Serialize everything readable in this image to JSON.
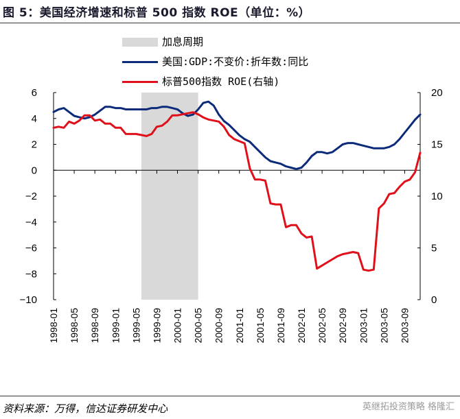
{
  "title": "图 5：美国经济增速和标普 500 指数 ROE（单位：%）",
  "source": "资料来源：万得，信达证券研发中心",
  "watermark": "英继拓投资策略 格隆汇",
  "chart_data": {
    "type": "line",
    "legend": {
      "shade": "加息周期",
      "gdp": "美国:GDP:不变价:折年数:同比",
      "roe": "标普500指数 ROE(右轴)"
    },
    "left_axis": {
      "ylim": [
        -10,
        6
      ],
      "ticks": [
        6,
        4,
        2,
        0,
        -2,
        -4,
        -6,
        -8,
        -10
      ]
    },
    "right_axis": {
      "ylim": [
        0,
        20
      ],
      "ticks": [
        20,
        15,
        10,
        5,
        0
      ]
    },
    "x_labels": [
      "1998-01",
      "1998-05",
      "1998-09",
      "1999-01",
      "1999-05",
      "1999-09",
      "2000-01",
      "2000-05",
      "2000-09",
      "2001-01",
      "2001-05",
      "2001-09",
      "2002-01",
      "2002-05",
      "2002-09",
      "2003-01",
      "2003-05",
      "2003-09"
    ],
    "shade_range": [
      "1999-06",
      "2000-05"
    ],
    "colors": {
      "gdp": "#0b2a7a",
      "roe": "#e0101a",
      "shade": "#d9d9d9"
    },
    "series": [
      {
        "name": "美国:GDP:不变价:折年数:同比",
        "axis": "left",
        "x": [
          "1998-01",
          "1998-02",
          "1998-03",
          "1998-04",
          "1998-05",
          "1998-06",
          "1998-07",
          "1998-08",
          "1998-09",
          "1998-10",
          "1998-11",
          "1998-12",
          "1999-01",
          "1999-02",
          "1999-03",
          "1999-04",
          "1999-05",
          "1999-06",
          "1999-07",
          "1999-08",
          "1999-09",
          "1999-10",
          "1999-11",
          "1999-12",
          "2000-01",
          "2000-02",
          "2000-03",
          "2000-04",
          "2000-05",
          "2000-06",
          "2000-07",
          "2000-08",
          "2000-09",
          "2000-10",
          "2000-11",
          "2000-12",
          "2001-01",
          "2001-02",
          "2001-03",
          "2001-04",
          "2001-05",
          "2001-06",
          "2001-07",
          "2001-08",
          "2001-09",
          "2001-10",
          "2001-11",
          "2001-12",
          "2002-01",
          "2002-02",
          "2002-03",
          "2002-04",
          "2002-05",
          "2002-06",
          "2002-07",
          "2002-08",
          "2002-09",
          "2002-10",
          "2002-11",
          "2002-12",
          "2003-01",
          "2003-02",
          "2003-03",
          "2003-04",
          "2003-05",
          "2003-06",
          "2003-07",
          "2003-08",
          "2003-09",
          "2003-10",
          "2003-11",
          "2003-12"
        ],
        "values": [
          4.5,
          4.7,
          4.8,
          4.5,
          4.2,
          4.1,
          4.0,
          4.1,
          4.3,
          4.6,
          4.9,
          4.9,
          4.8,
          4.8,
          4.7,
          4.7,
          4.7,
          4.7,
          4.7,
          4.8,
          4.8,
          4.9,
          4.9,
          4.8,
          4.7,
          4.4,
          4.2,
          4.3,
          4.7,
          5.2,
          5.3,
          5.0,
          4.3,
          3.8,
          3.5,
          3.1,
          2.7,
          2.4,
          2.2,
          1.8,
          1.4,
          1.0,
          0.7,
          0.6,
          0.5,
          0.3,
          0.2,
          0.1,
          0.2,
          0.6,
          1.1,
          1.4,
          1.4,
          1.3,
          1.4,
          1.7,
          2.0,
          2.1,
          2.1,
          2.0,
          1.9,
          1.8,
          1.7,
          1.7,
          1.7,
          1.8,
          2.0,
          2.4,
          2.9,
          3.4,
          3.9,
          4.3
        ]
      },
      {
        "name": "标普500指数 ROE(右轴)",
        "axis": "right",
        "x": [
          "1998-01",
          "1998-02",
          "1998-03",
          "1998-04",
          "1998-05",
          "1998-06",
          "1998-07",
          "1998-08",
          "1998-09",
          "1998-10",
          "1998-11",
          "1998-12",
          "1999-01",
          "1999-02",
          "1999-03",
          "1999-04",
          "1999-05",
          "1999-06",
          "1999-07",
          "1999-08",
          "1999-09",
          "1999-10",
          "1999-11",
          "1999-12",
          "2000-01",
          "2000-02",
          "2000-03",
          "2000-04",
          "2000-05",
          "2000-06",
          "2000-07",
          "2000-08",
          "2000-09",
          "2000-10",
          "2000-11",
          "2000-12",
          "2001-01",
          "2001-02",
          "2001-03",
          "2001-04",
          "2001-05",
          "2001-06",
          "2001-07",
          "2001-08",
          "2001-09",
          "2001-10",
          "2001-11",
          "2001-12",
          "2002-01",
          "2002-02",
          "2002-03",
          "2002-04",
          "2002-05",
          "2002-06",
          "2002-07",
          "2002-08",
          "2002-09",
          "2002-10",
          "2002-11",
          "2002-12",
          "2003-01",
          "2003-02",
          "2003-03",
          "2003-04",
          "2003-05",
          "2003-06",
          "2003-07",
          "2003-08",
          "2003-09",
          "2003-10",
          "2003-11",
          "2003-12"
        ],
        "values": [
          16.6,
          16.7,
          16.6,
          17.2,
          17.0,
          17.3,
          17.8,
          17.8,
          17.3,
          17.4,
          17.0,
          17.0,
          16.6,
          16.6,
          16.0,
          16.0,
          16.0,
          15.9,
          15.8,
          16.0,
          16.7,
          16.8,
          17.2,
          17.8,
          17.8,
          17.9,
          18.0,
          18.1,
          17.9,
          17.6,
          17.4,
          17.3,
          17.2,
          16.7,
          15.9,
          15.5,
          15.3,
          15.1,
          12.7,
          11.6,
          11.6,
          11.5,
          9.3,
          9.2,
          9.2,
          7.0,
          7.2,
          7.2,
          6.4,
          6.0,
          6.1,
          3.0,
          3.3,
          3.6,
          3.9,
          4.2,
          4.4,
          4.5,
          4.6,
          4.5,
          2.9,
          2.8,
          2.9,
          8.8,
          9.3,
          10.2,
          10.3,
          10.9,
          11.4,
          11.6,
          12.3,
          14.2
        ]
      }
    ]
  }
}
